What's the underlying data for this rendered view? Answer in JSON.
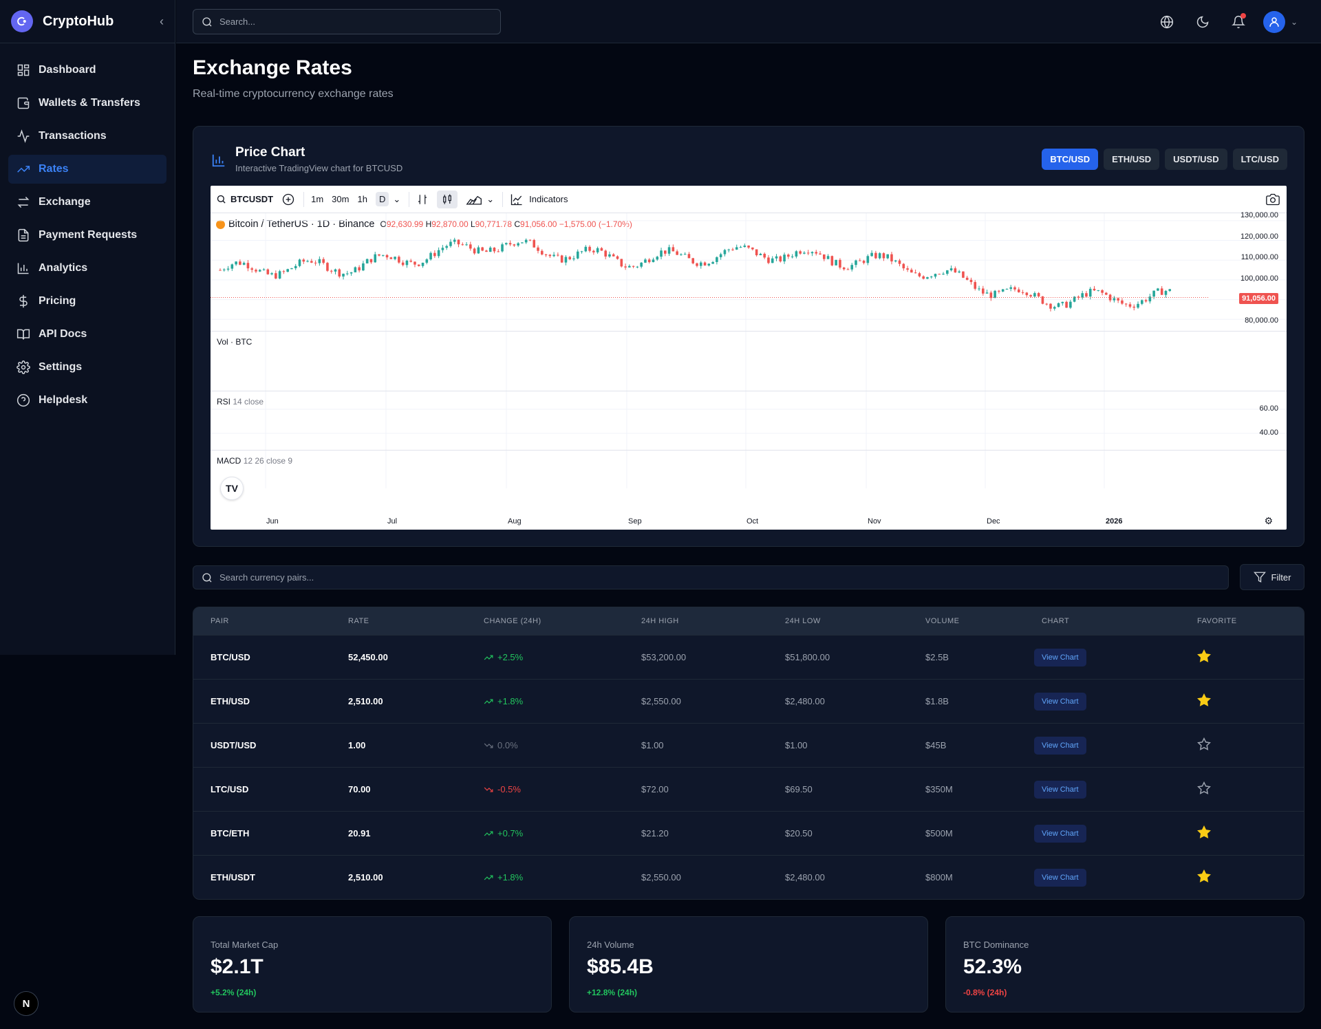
{
  "brand": {
    "name": "CryptoHub"
  },
  "header": {
    "search_placeholder": "Search..."
  },
  "sidebar": {
    "items": [
      {
        "label": "Dashboard",
        "icon": "dashboard-icon"
      },
      {
        "label": "Wallets & Transfers",
        "icon": "wallet-icon"
      },
      {
        "label": "Transactions",
        "icon": "activity-icon"
      },
      {
        "label": "Rates",
        "icon": "trending-up-icon",
        "active": true
      },
      {
        "label": "Exchange",
        "icon": "swap-icon"
      },
      {
        "label": "Payment Requests",
        "icon": "document-icon"
      },
      {
        "label": "Analytics",
        "icon": "bar-chart-icon"
      },
      {
        "label": "Pricing",
        "icon": "dollar-icon"
      },
      {
        "label": "API Docs",
        "icon": "book-icon"
      },
      {
        "label": "Settings",
        "icon": "gear-icon"
      },
      {
        "label": "Helpdesk",
        "icon": "help-icon"
      }
    ]
  },
  "page": {
    "title": "Exchange Rates",
    "subtitle": "Real-time cryptocurrency exchange rates"
  },
  "chart_card": {
    "title": "Price Chart",
    "subtitle": "Interactive TradingView chart for BTCUSD",
    "pairs": [
      "BTC/USD",
      "ETH/USD",
      "USDT/USD",
      "LTC/USD"
    ],
    "active_pair": "BTC/USD"
  },
  "tradingview": {
    "symbol": "BTCUSDT",
    "intervals": [
      "1m",
      "30m",
      "1h",
      "D"
    ],
    "indicators_label": "Indicators",
    "legend_title": "Bitcoin / TetherUS · 1D · Binance",
    "ohlc": {
      "o": "92,630.99",
      "h": "92,870.00",
      "l": "90,771.78",
      "c": "91,056.00",
      "change": "−1,575.00 (−1.70%)"
    },
    "last_price": "91,056.00",
    "price_axis": [
      "130,000.00",
      "120,000.00",
      "110,000.00",
      "100,000.00",
      "80,000.00"
    ],
    "rsi_axis": [
      "60.00",
      "40.00"
    ],
    "vol_label": "Vol · BTC",
    "rsi_label": "RSI",
    "rsi_params": "14 close",
    "macd_label": "MACD",
    "macd_params": "12 26 close 9",
    "x_labels": [
      "Jun",
      "Jul",
      "Aug",
      "Sep",
      "Oct",
      "Nov",
      "Dec",
      "2026"
    ],
    "logo_text": "TV"
  },
  "chart_data": {
    "type": "line",
    "title": "Bitcoin / TetherUS · 1D · Binance",
    "x": [
      "Jun",
      "Jul",
      "Aug",
      "Sep",
      "Oct",
      "Nov",
      "Dec",
      "2026"
    ],
    "series": [
      {
        "name": "BTCUSDT",
        "values": [
          105000,
          107000,
          118000,
          110000,
          114000,
          108000,
          90000,
          91056
        ]
      }
    ],
    "ylim": [
      78000,
      131000
    ]
  },
  "pairs_search": {
    "placeholder": "Search currency pairs...",
    "filter_label": "Filter"
  },
  "table": {
    "headers": [
      "PAIR",
      "RATE",
      "CHANGE (24H)",
      "24H HIGH",
      "24H LOW",
      "VOLUME",
      "CHART",
      "FAVORITE"
    ],
    "view_label": "View Chart",
    "rows": [
      {
        "pair": "BTC/USD",
        "rate": "52,450.00",
        "change": "+2.5%",
        "dir": "pos",
        "high": "$53,200.00",
        "low": "$51,800.00",
        "volume": "$2.5B",
        "fav": true
      },
      {
        "pair": "ETH/USD",
        "rate": "2,510.00",
        "change": "+1.8%",
        "dir": "pos",
        "high": "$2,550.00",
        "low": "$2,480.00",
        "volume": "$1.8B",
        "fav": true
      },
      {
        "pair": "USDT/USD",
        "rate": "1.00",
        "change": "0.0%",
        "dir": "zero",
        "high": "$1.00",
        "low": "$1.00",
        "volume": "$45B",
        "fav": false
      },
      {
        "pair": "LTC/USD",
        "rate": "70.00",
        "change": "-0.5%",
        "dir": "neg",
        "high": "$72.00",
        "low": "$69.50",
        "volume": "$350M",
        "fav": false
      },
      {
        "pair": "BTC/ETH",
        "rate": "20.91",
        "change": "+0.7%",
        "dir": "pos",
        "high": "$21.20",
        "low": "$20.50",
        "volume": "$500M",
        "fav": true
      },
      {
        "pair": "ETH/USDT",
        "rate": "2,510.00",
        "change": "+1.8%",
        "dir": "pos",
        "high": "$2,550.00",
        "low": "$2,480.00",
        "volume": "$800M",
        "fav": true
      }
    ]
  },
  "stats": [
    {
      "label": "Total Market Cap",
      "value": "$2.1T",
      "change": "+5.2% (24h)",
      "dir": "pos"
    },
    {
      "label": "24h Volume",
      "value": "$85.4B",
      "change": "+12.8% (24h)",
      "dir": "pos"
    },
    {
      "label": "BTC Dominance",
      "value": "52.3%",
      "change": "-0.8% (24h)",
      "dir": "neg"
    }
  ],
  "colors": {
    "accent": "#2563eb",
    "positive": "#22c55e",
    "negative": "#ef4444",
    "background": "#030712",
    "card": "#0f172a"
  },
  "footer_badge": "N"
}
